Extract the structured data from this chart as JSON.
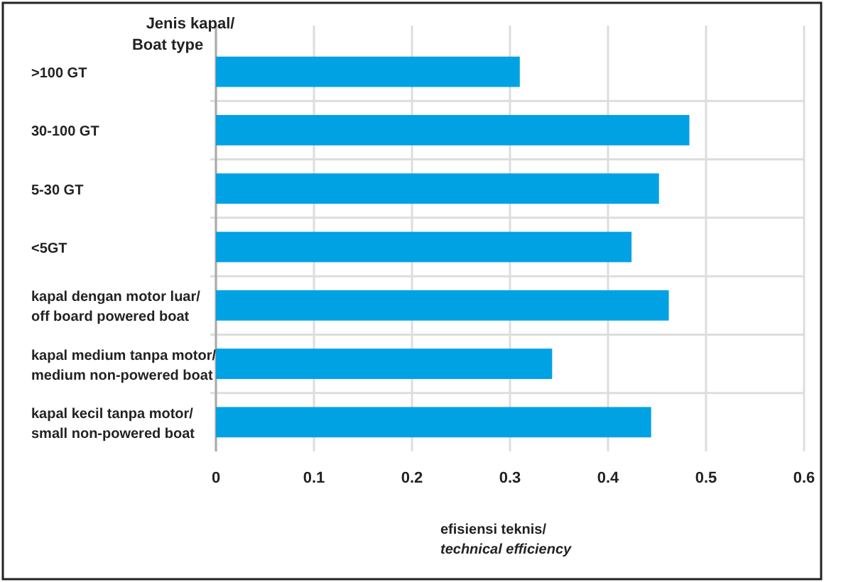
{
  "chart_data": {
    "type": "bar",
    "orientation": "horizontal",
    "categories": [
      ">100 GT",
      "30-100 GT",
      "5-30 GT",
      "<5GT",
      "kapal dengan motor luar/\noff board powered boat",
      "kapal medium tanpa motor/\nmedium non-powered boat",
      "kapal kecil tanpa motor/\nsmall non-powered boat"
    ],
    "values": [
      0.31,
      0.483,
      0.452,
      0.424,
      0.462,
      0.343,
      0.444
    ],
    "color": "#00a2e4",
    "xlim": [
      0,
      0.6
    ],
    "xticks": [
      0,
      0.1,
      0.2,
      0.3,
      0.4,
      0.5,
      0.6
    ],
    "xlabel": "efisiensi teknis/\ntechnical efficiency",
    "ylabel": "Jenis kapal/\nBoat type",
    "grid": true
  }
}
